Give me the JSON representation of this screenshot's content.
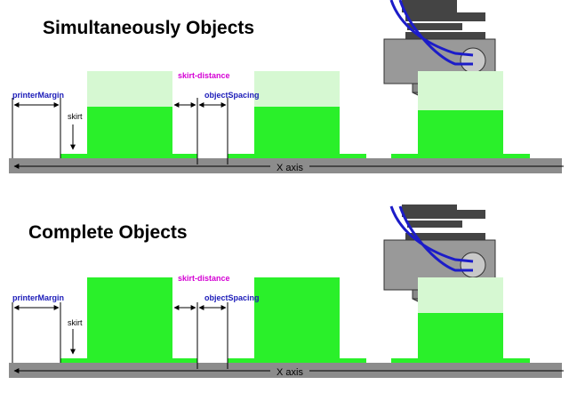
{
  "panels": [
    {
      "title": "Simultaneously Objects",
      "labels": {
        "printer_margin": "printerMargin",
        "skirt": "skirt",
        "skirt_distance": "skirt-distance",
        "object_spacing": "objectSpacing",
        "x_axis": "X axis"
      }
    },
    {
      "title": "Complete Objects",
      "labels": {
        "printer_margin": "printerMargin",
        "skirt": "skirt",
        "skirt_distance": "skirt-distance",
        "object_spacing": "objectSpacing",
        "x_axis": "X axis"
      }
    }
  ],
  "colors": {
    "object_green": "#2af02a",
    "object_light": "#d6f8d2",
    "bed_gray": "#8c8c8c",
    "head_gray": "#888888",
    "wire_blue": "#1c1cc8",
    "label_blue": "#1a1ab8",
    "label_magenta": "#d400d4"
  }
}
